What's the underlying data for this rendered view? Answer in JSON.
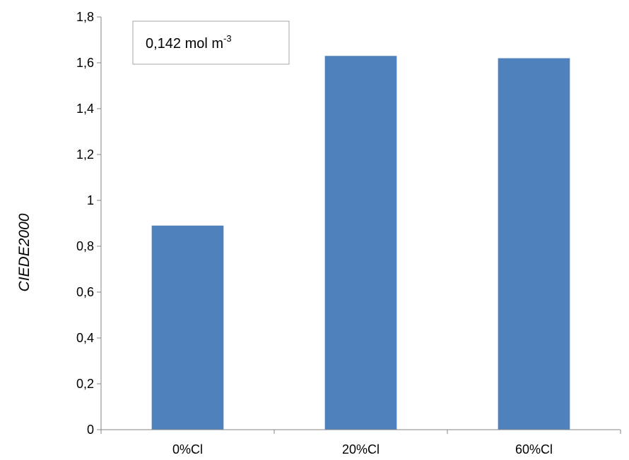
{
  "chart_data": {
    "type": "bar",
    "categories": [
      "0%Cl",
      "20%Cl",
      "60%Cl"
    ],
    "values": [
      0.89,
      1.63,
      1.62
    ],
    "ylabel": "CIEDE2000",
    "xlabel": "",
    "ylim": [
      0,
      1.8
    ],
    "yticks": [
      0,
      0.2,
      0.4,
      0.6,
      0.8,
      1,
      1.2,
      1.4,
      1.6,
      1.8
    ],
    "ytick_labels": [
      "0",
      "0,2",
      "0,4",
      "0,6",
      "0,8",
      "1",
      "1,2",
      "1,4",
      "1,6",
      "1,8"
    ],
    "bar_color": "#4F81BD",
    "grid": false,
    "legend": "none",
    "annotation": {
      "text": "0,142 mol m",
      "superscript": "-3",
      "placement": "top-left"
    }
  }
}
